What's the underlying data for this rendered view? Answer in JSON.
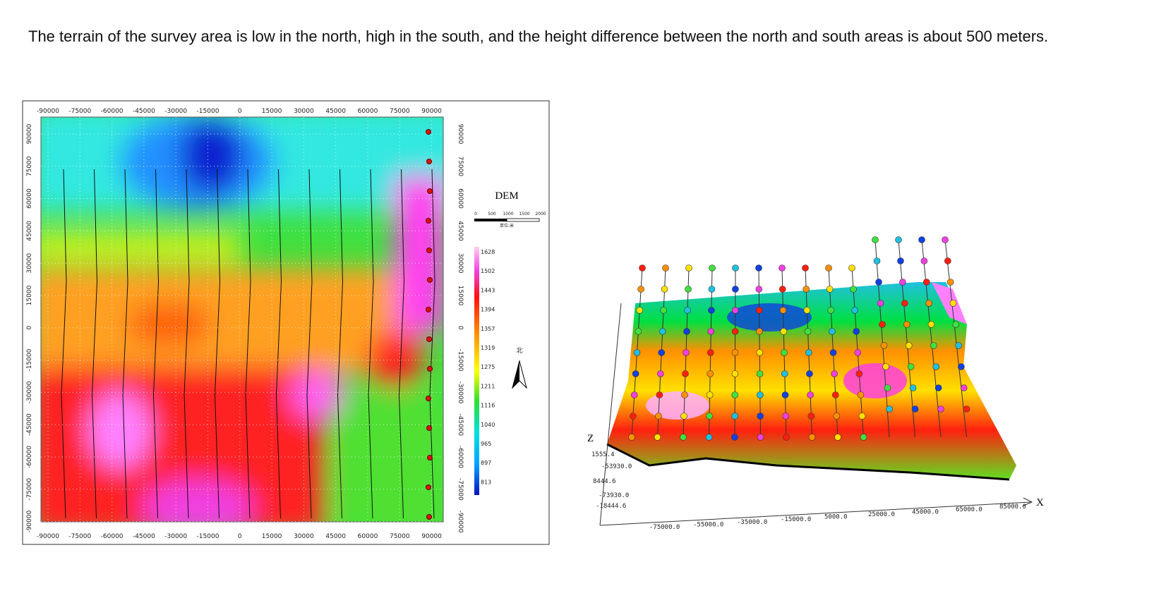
{
  "caption": "The terrain of the survey area is low in the north, high in the south, and the height difference between the north and south areas is about 500 meters.",
  "map": {
    "x_labels": [
      "-90000",
      "-75000",
      "-60000",
      "-45000",
      "-30000",
      "-15000",
      "0",
      "15000",
      "30000",
      "45000",
      "60000",
      "75000",
      "90000"
    ],
    "y_labels": [
      "90000",
      "75000",
      "60000",
      "45000",
      "30000",
      "15000",
      "0",
      "-15000",
      "-30000",
      "-45000",
      "-60000",
      "-75000",
      "-90000"
    ],
    "legend_title": "DEM",
    "scale_labels": [
      "0",
      "500",
      "1000",
      "1500",
      "2000"
    ],
    "scale_unit": "单位:米",
    "legend_values": [
      "1628",
      "1502",
      "1443",
      "1394",
      "1357",
      "1319",
      "1275",
      "1211",
      "1116",
      "1040",
      "965",
      "897",
      "813"
    ],
    "north": "北"
  },
  "view3d": {
    "z_axis": "Z",
    "x_axis": "X",
    "z_labels": [
      "1555.4",
      "-53930.0",
      "8444.6",
      "-73930.0",
      "-18444.6"
    ],
    "x_labels": [
      "-75000.0",
      "-55000.0",
      "-35000.0",
      "-15000.0",
      "5000.0",
      "25000.0",
      "45000.0",
      "65000.0",
      "85000.0"
    ]
  }
}
